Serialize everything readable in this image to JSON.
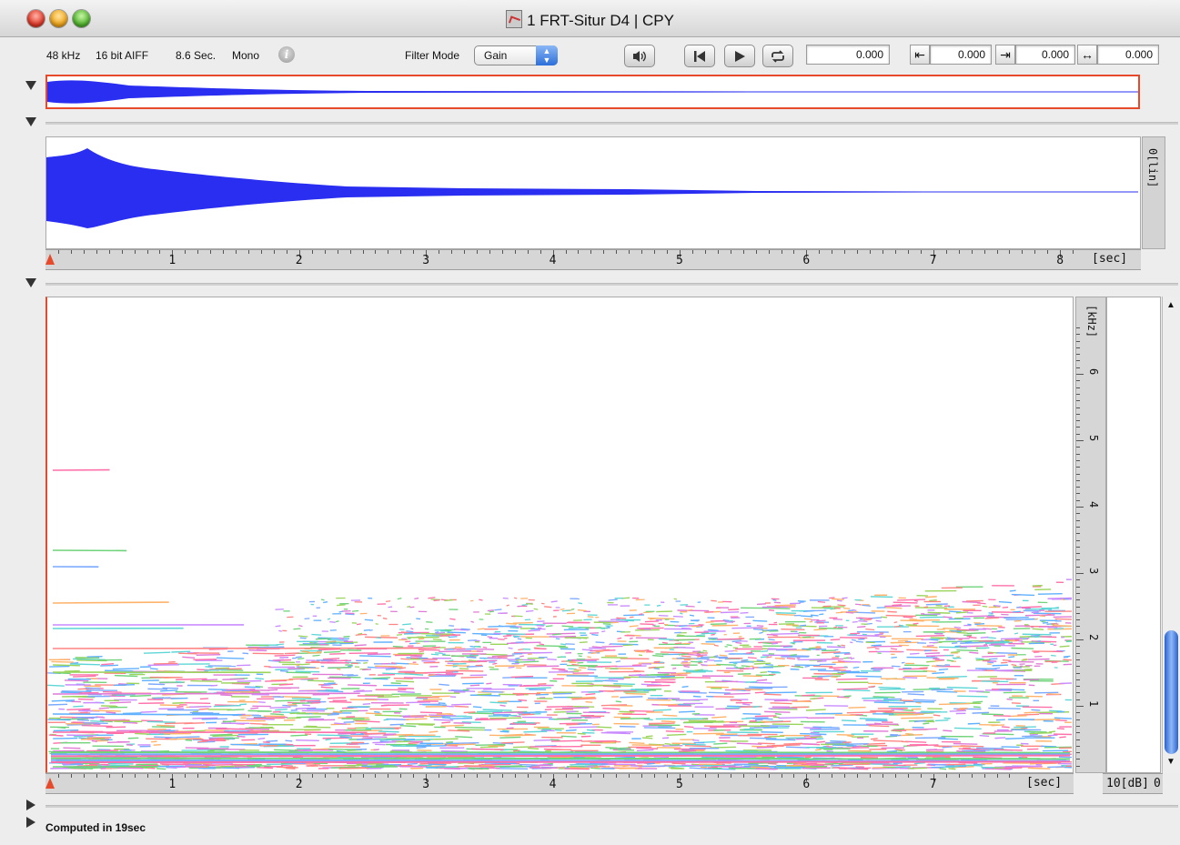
{
  "window": {
    "title": "1 FRT-Situr  D4  | CPY",
    "doc_icon": "audio-doc-icon"
  },
  "toolbar": {
    "sample_rate": "48 kHz",
    "bit_depth": "16 bit AIFF",
    "duration": "8.6 Sec.",
    "channels": "Mono",
    "info_glyph": "i",
    "filter_mode_label": "Filter Mode",
    "filter_mode_value": "Gain",
    "play_position": "0.000",
    "selection_start": "0.000",
    "selection_end": "0.000",
    "selection_length": "0.000",
    "icons": [
      "speaker-icon",
      "rewind-to-start-icon",
      "play-icon",
      "loop-icon",
      "arrow-left-icon",
      "arrow-right-icon",
      "arrow-both-icon"
    ]
  },
  "waveform": {
    "amp_label": "0[lin]",
    "time_ticks": [
      "1",
      "2",
      "3",
      "4",
      "5",
      "6",
      "7",
      "8"
    ],
    "time_unit": "[sec]",
    "color": "#2a2ef0"
  },
  "spectrogram": {
    "time_ticks": [
      "1",
      "2",
      "3",
      "4",
      "5",
      "6",
      "7"
    ],
    "time_unit": "[sec]",
    "freq_unit": "[kHz]",
    "freq_ticks": [
      "6",
      "5",
      "4",
      "3",
      "2",
      "1"
    ],
    "db_label": "10[dB]",
    "db_trailing": "0"
  },
  "status": {
    "text": "Computed in 19sec"
  },
  "colors": {
    "accent_red": "#e64a2a",
    "wave_blue": "#2a2ef0",
    "scroll_blue": "#2a63d0"
  }
}
